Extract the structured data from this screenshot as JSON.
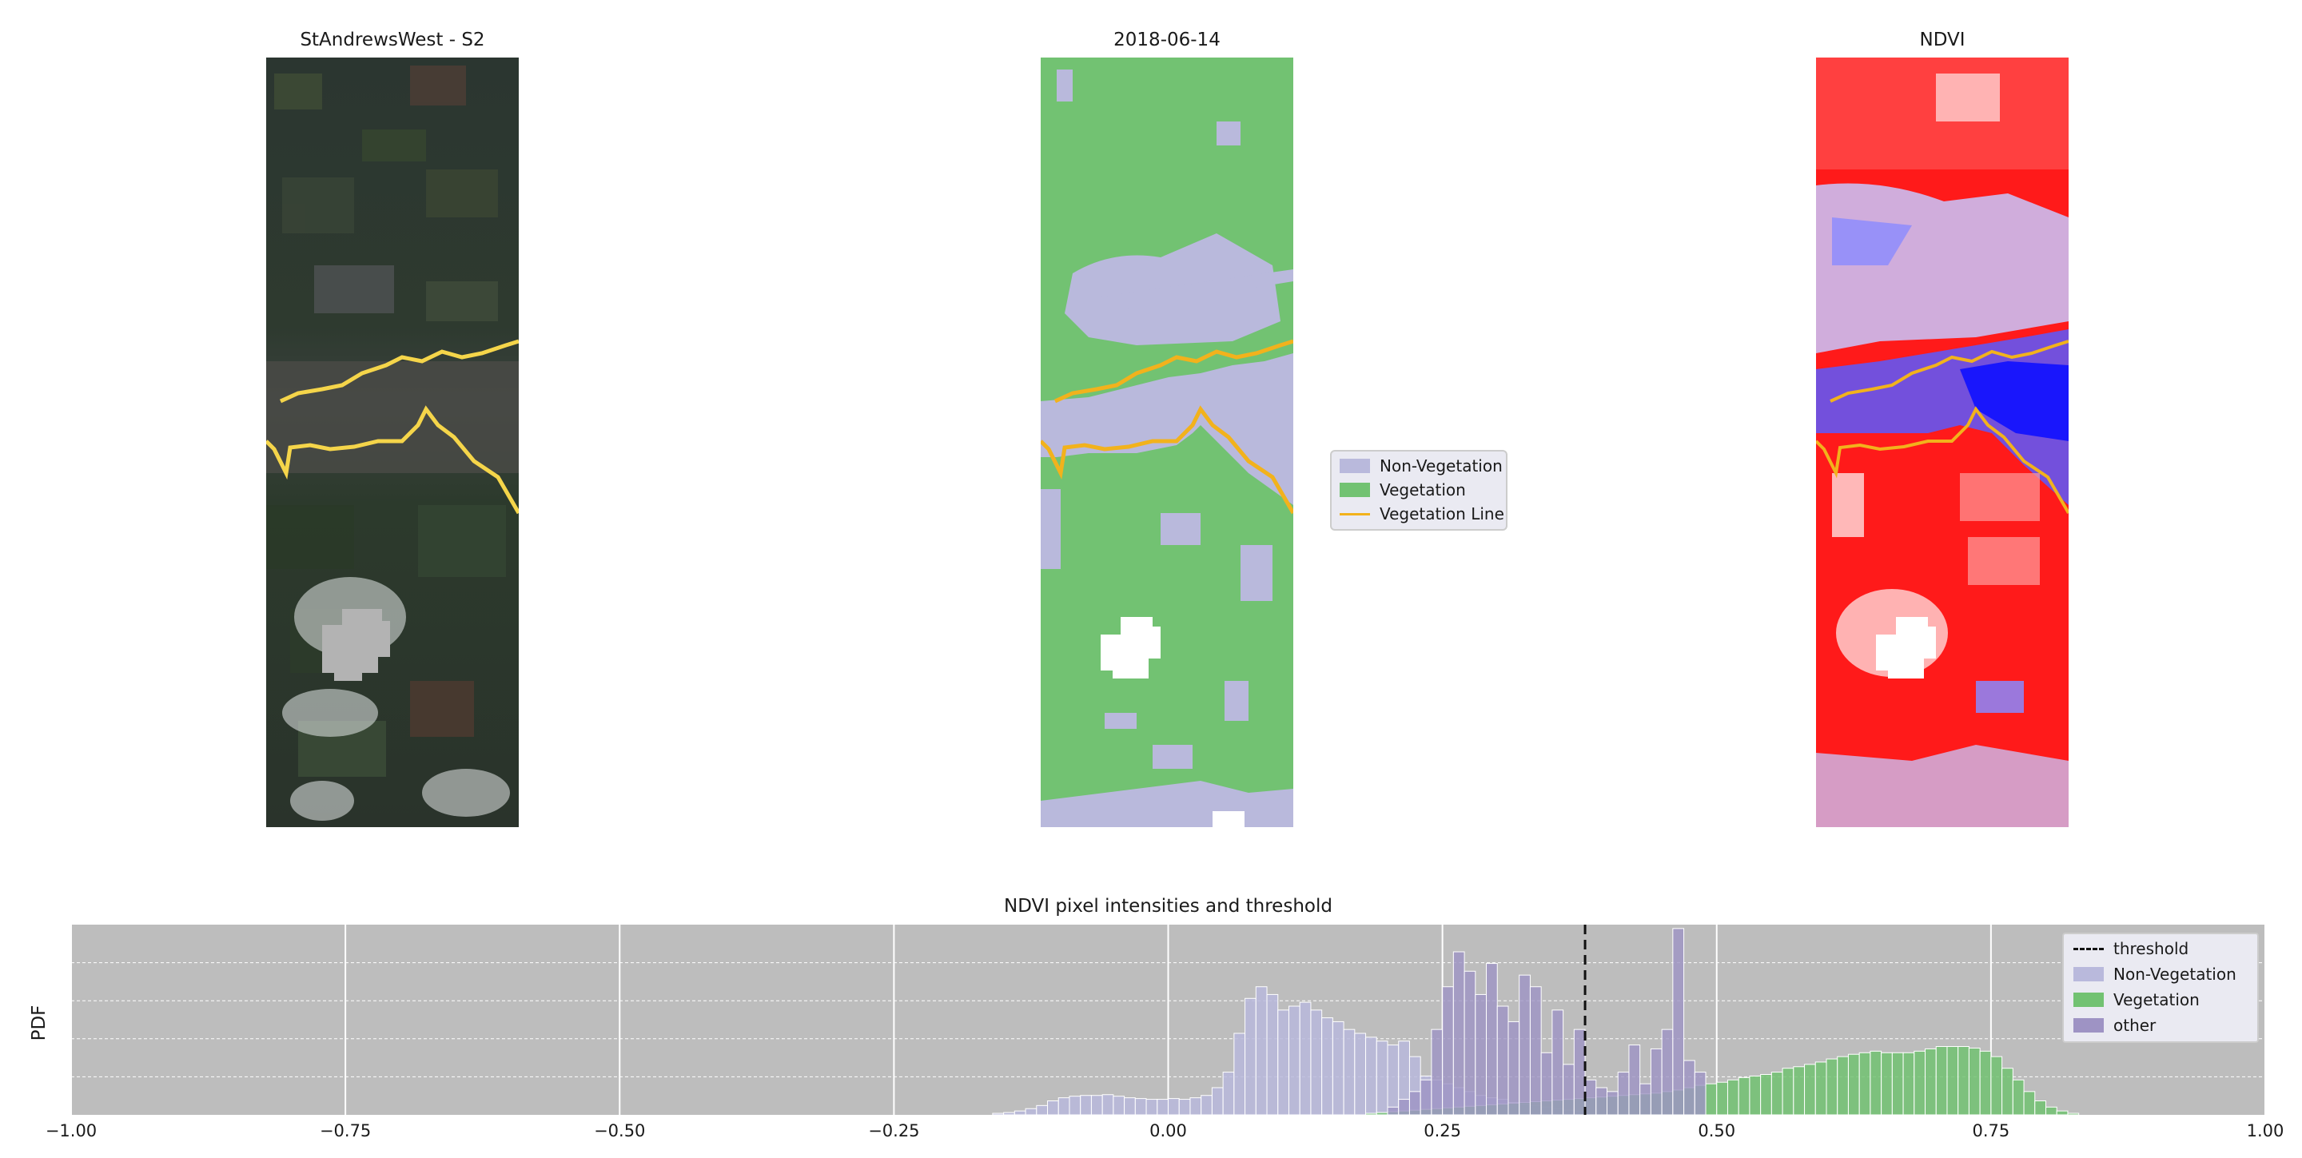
{
  "panels": {
    "s2": {
      "title": "StAndrewsWest - S2"
    },
    "classification": {
      "title": "2018-06-14"
    },
    "ndvi": {
      "title": "NDVI"
    }
  },
  "classification_legend": {
    "items": [
      {
        "label": "Non-Vegetation",
        "color": "#b9b9dc"
      },
      {
        "label": "Vegetation",
        "color": "#72c272"
      },
      {
        "label": "Vegetation Line",
        "color": "#f2b21c"
      }
    ]
  },
  "colors": {
    "non_vegetation": "#b9b9dc",
    "vegetation": "#72c272",
    "vegetation_line": "#f2b21c",
    "s2_line": "#f5d54a",
    "other": "#9e93c4",
    "plot_bg": "#bdbdbd"
  },
  "chart_data": {
    "type": "bar",
    "title": "NDVI pixel intensities and threshold",
    "xlabel": "",
    "ylabel": "PDF",
    "xlim": [
      -1.0,
      1.0
    ],
    "xticks": [
      "−1.00",
      "−0.75",
      "−0.50",
      "−0.25",
      "0.00",
      "0.25",
      "0.50",
      "0.75",
      "1.00"
    ],
    "threshold": 0.38,
    "legend": {
      "position": "top-right",
      "entries": [
        {
          "label": "threshold",
          "kind": "dashed-line",
          "color": "#111111"
        },
        {
          "label": "Non-Vegetation",
          "kind": "patch",
          "color": "#b9b9dc"
        },
        {
          "label": "Vegetation",
          "kind": "patch",
          "color": "#72c272"
        },
        {
          "label": "other",
          "kind": "patch",
          "color": "#9e93c4"
        }
      ]
    },
    "bin_width": 0.01,
    "series": [
      {
        "name": "Non-Vegetation",
        "x": [
          -0.16,
          -0.15,
          -0.14,
          -0.13,
          -0.12,
          -0.11,
          -0.1,
          -0.09,
          -0.08,
          -0.07,
          -0.06,
          -0.05,
          -0.04,
          -0.03,
          -0.02,
          -0.01,
          0.0,
          0.01,
          0.02,
          0.03,
          0.04,
          0.05,
          0.06,
          0.07,
          0.08,
          0.09,
          0.1,
          0.11,
          0.12,
          0.13,
          0.14,
          0.15,
          0.16,
          0.17,
          0.18,
          0.19,
          0.2,
          0.21,
          0.22,
          0.23,
          0.24,
          0.25,
          0.26,
          0.27,
          0.28,
          0.29,
          0.3,
          0.31,
          0.32,
          0.33,
          0.34,
          0.35,
          0.36,
          0.37
        ],
        "values": [
          0.02,
          0.03,
          0.05,
          0.08,
          0.12,
          0.18,
          0.22,
          0.24,
          0.25,
          0.25,
          0.26,
          0.24,
          0.22,
          0.21,
          0.2,
          0.2,
          0.21,
          0.2,
          0.22,
          0.25,
          0.35,
          0.55,
          1.05,
          1.5,
          1.65,
          1.55,
          1.35,
          1.4,
          1.45,
          1.35,
          1.25,
          1.2,
          1.1,
          1.05,
          1.0,
          0.95,
          0.9,
          0.95,
          0.75,
          0.5,
          0.45,
          0.4,
          0.35,
          0.3,
          0.25,
          0.22,
          0.2,
          0.16,
          0.14,
          0.12,
          0.1,
          0.08,
          0.06,
          0.05
        ]
      },
      {
        "name": "Vegetation",
        "x": [
          0.18,
          0.19,
          0.2,
          0.21,
          0.22,
          0.23,
          0.24,
          0.25,
          0.26,
          0.27,
          0.28,
          0.29,
          0.3,
          0.31,
          0.32,
          0.33,
          0.34,
          0.35,
          0.36,
          0.37,
          0.38,
          0.39,
          0.4,
          0.41,
          0.42,
          0.43,
          0.44,
          0.45,
          0.46,
          0.47,
          0.48,
          0.49,
          0.5,
          0.51,
          0.52,
          0.53,
          0.54,
          0.55,
          0.56,
          0.57,
          0.58,
          0.59,
          0.6,
          0.61,
          0.62,
          0.63,
          0.64,
          0.65,
          0.66,
          0.67,
          0.68,
          0.69,
          0.7,
          0.71,
          0.72,
          0.73,
          0.74,
          0.75,
          0.76,
          0.77,
          0.78,
          0.79,
          0.8,
          0.81,
          0.82
        ],
        "values": [
          0.02,
          0.03,
          0.04,
          0.05,
          0.06,
          0.07,
          0.08,
          0.09,
          0.1,
          0.11,
          0.12,
          0.13,
          0.14,
          0.15,
          0.16,
          0.17,
          0.18,
          0.19,
          0.2,
          0.21,
          0.22,
          0.23,
          0.24,
          0.25,
          0.26,
          0.27,
          0.28,
          0.3,
          0.32,
          0.35,
          0.38,
          0.4,
          0.42,
          0.45,
          0.48,
          0.5,
          0.52,
          0.55,
          0.6,
          0.62,
          0.65,
          0.68,
          0.72,
          0.75,
          0.78,
          0.8,
          0.82,
          0.8,
          0.8,
          0.8,
          0.82,
          0.85,
          0.88,
          0.88,
          0.88,
          0.86,
          0.82,
          0.75,
          0.6,
          0.45,
          0.3,
          0.18,
          0.1,
          0.05,
          0.02
        ]
      },
      {
        "name": "other",
        "x": [
          0.2,
          0.21,
          0.22,
          0.23,
          0.24,
          0.25,
          0.26,
          0.27,
          0.28,
          0.29,
          0.3,
          0.31,
          0.32,
          0.33,
          0.34,
          0.35,
          0.36,
          0.37,
          0.38,
          0.39,
          0.4,
          0.41,
          0.42,
          0.43,
          0.44,
          0.45,
          0.46,
          0.47,
          0.48
        ],
        "values": [
          0.1,
          0.2,
          0.3,
          0.45,
          1.1,
          1.65,
          2.1,
          1.85,
          1.55,
          1.95,
          1.4,
          1.2,
          1.8,
          1.65,
          0.8,
          1.35,
          0.65,
          1.1,
          0.45,
          0.35,
          0.3,
          0.55,
          0.9,
          0.4,
          0.85,
          1.1,
          2.4,
          0.7,
          0.55
        ]
      }
    ],
    "ylim": [
      0,
      2.45
    ],
    "grid": true
  }
}
